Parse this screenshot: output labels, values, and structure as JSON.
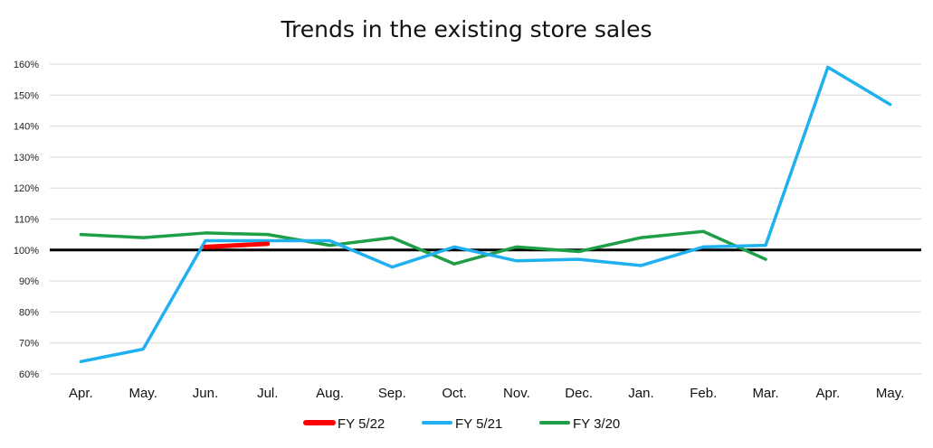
{
  "chart_data": {
    "type": "line",
    "title": "Trends in the existing store sales",
    "categories": [
      "Apr.",
      "May.",
      "Jun.",
      "Jul.",
      "Aug.",
      "Sep.",
      "Oct.",
      "Nov.",
      "Dec.",
      "Jan.",
      "Feb.",
      "Mar.",
      "Apr.",
      "May."
    ],
    "y_ticks": [
      "60%",
      "70%",
      "80%",
      "90%",
      "100%",
      "110%",
      "120%",
      "130%",
      "140%",
      "150%",
      "160%"
    ],
    "ylim": [
      60,
      160
    ],
    "grid": true,
    "legend_position": "bottom",
    "reference_line": {
      "value": 100,
      "color": "#000000"
    },
    "series": [
      {
        "name": "FY 5/22",
        "color": "#ff0000",
        "values": [
          null,
          null,
          101,
          102,
          null,
          null,
          null,
          null,
          null,
          null,
          null,
          null,
          null,
          null
        ]
      },
      {
        "name": "FY 5/21",
        "color": "#1fb0f0",
        "values": [
          64,
          68,
          103,
          103,
          103,
          94.5,
          101,
          96.5,
          97,
          95,
          101,
          101.5,
          159,
          147
        ]
      },
      {
        "name": "FY 3/20",
        "color": "#1f9e48",
        "values": [
          105,
          104,
          105.5,
          105,
          101.5,
          104,
          95.5,
          101,
          99.5,
          104,
          106,
          97,
          null,
          null
        ]
      }
    ]
  }
}
